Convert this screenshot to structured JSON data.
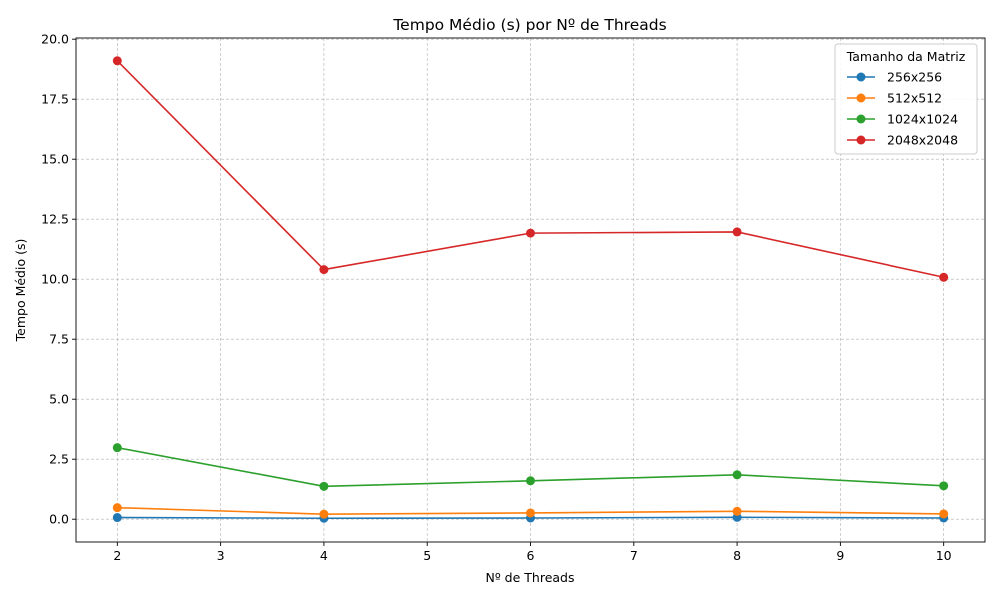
{
  "chart_data": {
    "type": "line",
    "title": "Tempo Médio (s) por Nº de Threads",
    "xlabel": "Nº de Threads",
    "ylabel": "Tempo Médio (s)",
    "x": [
      2,
      4,
      6,
      8,
      10
    ],
    "xlim": [
      1.6,
      10.4
    ],
    "ylim": [
      -0.95,
      20.05
    ],
    "xticks": [
      "2",
      "3",
      "4",
      "5",
      "6",
      "7",
      "8",
      "9",
      "10"
    ],
    "yticks": [
      "0.0",
      "2.5",
      "5.0",
      "7.5",
      "10.0",
      "12.5",
      "15.0",
      "17.5",
      "20.0"
    ],
    "grid": true,
    "legend": {
      "title": "Tamanho da Matriz",
      "placement": "top-right"
    },
    "series": [
      {
        "name": "256x256",
        "color": "#1f77b4",
        "values": [
          0.07,
          0.04,
          0.05,
          0.08,
          0.05
        ]
      },
      {
        "name": "512x512",
        "color": "#ff7f0e",
        "values": [
          0.48,
          0.21,
          0.26,
          0.33,
          0.22
        ]
      },
      {
        "name": "1024x1024",
        "color": "#2ca02c",
        "values": [
          2.98,
          1.37,
          1.6,
          1.85,
          1.39
        ]
      },
      {
        "name": "2048x2048",
        "color": "#d62728",
        "values": [
          19.1,
          10.4,
          11.92,
          11.97,
          10.08
        ]
      }
    ]
  }
}
